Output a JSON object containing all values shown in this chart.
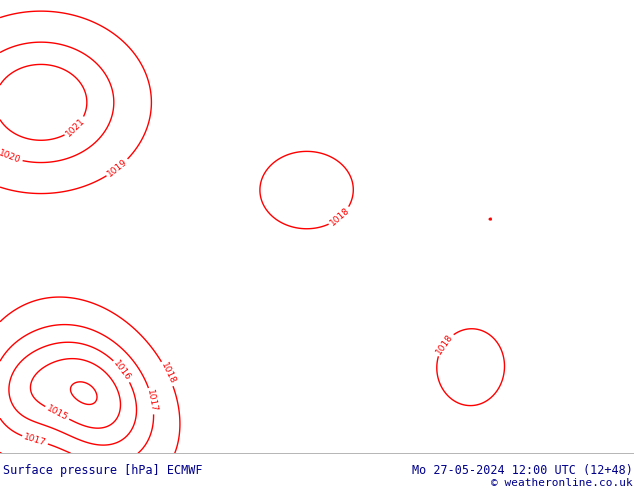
{
  "title_left": "Surface pressure [hPa] ECMWF",
  "title_right": "Mo 27-05-2024 12:00 UTC (12+48)",
  "copyright": "© weatheronline.co.uk",
  "land_color": "#c8e6a0",
  "sea_color": "#dcdcdc",
  "contour_color": "#ff0000",
  "land_border_color": "#000000",
  "border_color": "#555555",
  "bottom_bar_color": "#ffffff",
  "bottom_text_color": "#00008b",
  "fig_width": 6.34,
  "fig_height": 4.9,
  "dpi": 100,
  "lon_min": -6,
  "lon_max": 25,
  "lat_min": 35,
  "lat_max": 50.5,
  "title_fontsize": 8.5,
  "copyright_fontsize": 8
}
